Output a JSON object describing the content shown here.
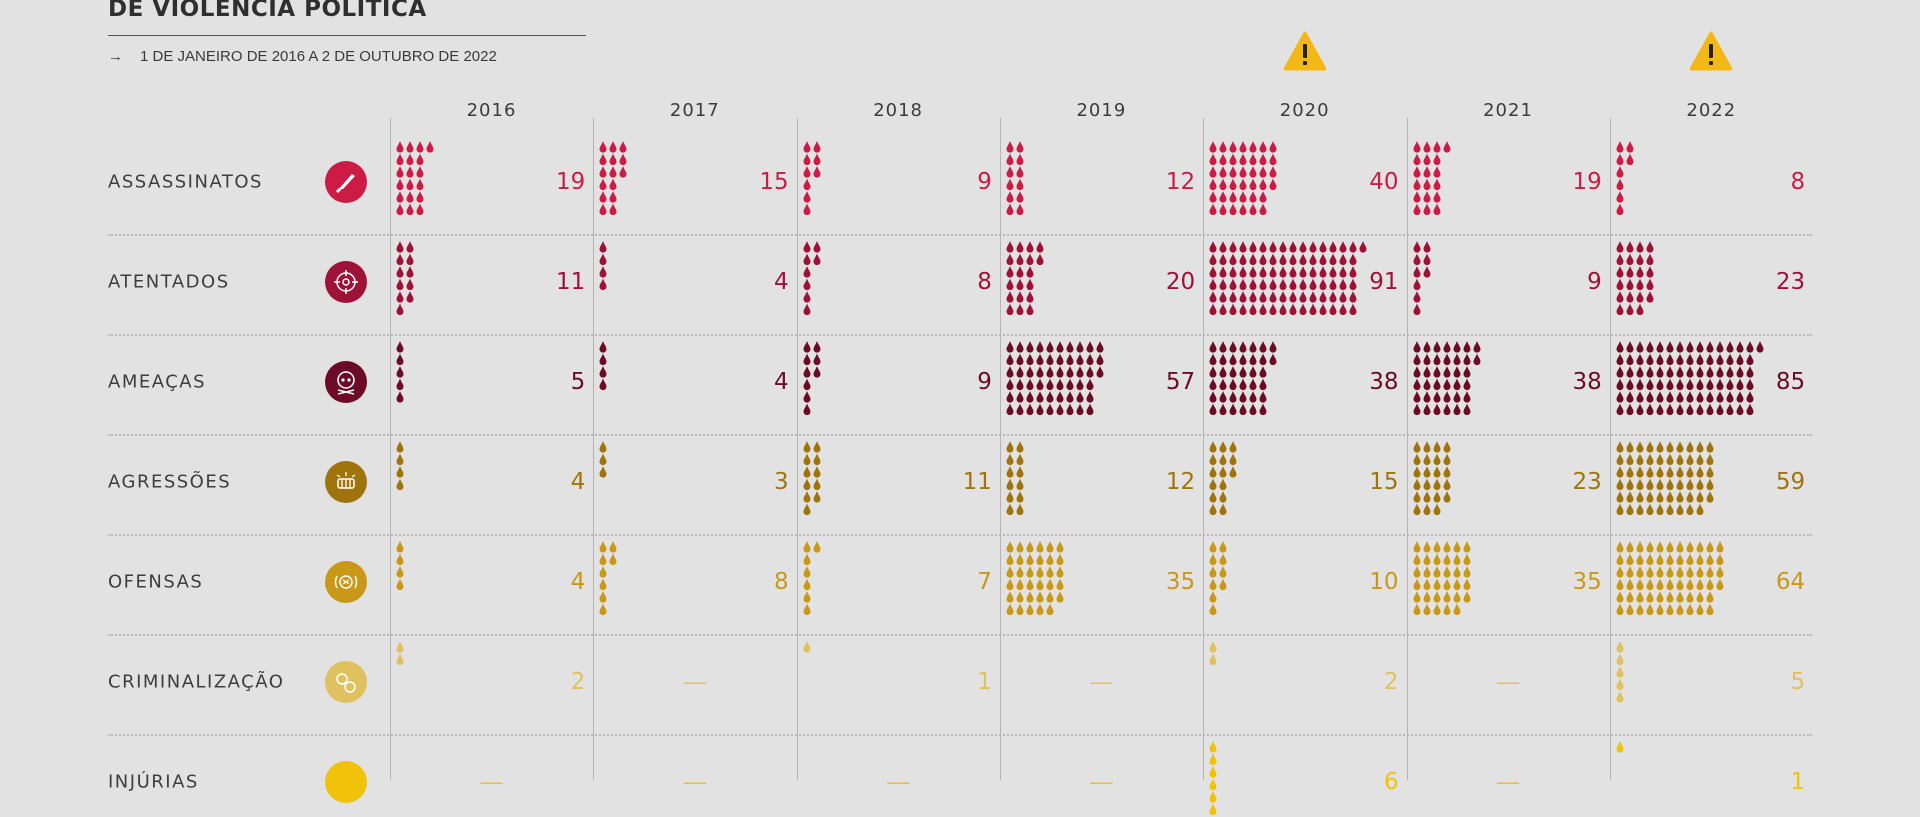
{
  "header": {
    "title": "DE VIOLÊNCIA POLÍTICA",
    "subtitle_arrow": "→",
    "subtitle": "1 DE JANEIRO DE 2016 A 2 DE OUTUBRO DE 2022",
    "warning_years": [
      "2020",
      "2022"
    ],
    "warning_color": "#f3b716"
  },
  "chart_data": {
    "type": "table",
    "title": "DE VIOLÊNCIA POLÍTICA",
    "subtitle": "1 DE JANEIRO DE 2016 A 2 DE OUTUBRO DE 2022",
    "categories": [
      "2016",
      "2017",
      "2018",
      "2019",
      "2020",
      "2021",
      "2022"
    ],
    "empty_marker": "—",
    "series": [
      {
        "name": "ASSASSINATOS",
        "icon": "knife-icon",
        "color": "#cc1b44",
        "values": [
          19,
          15,
          9,
          12,
          40,
          19,
          8
        ]
      },
      {
        "name": "ATENTADOS",
        "icon": "target-icon",
        "color": "#9e1238",
        "values": [
          11,
          4,
          8,
          20,
          91,
          9,
          23
        ]
      },
      {
        "name": "AMEAÇAS",
        "icon": "skull-icon",
        "color": "#6b0b27",
        "values": [
          5,
          4,
          9,
          57,
          38,
          38,
          85
        ]
      },
      {
        "name": "AGRESSÕES",
        "icon": "fist-icon",
        "color": "#a0740d",
        "values": [
          4,
          3,
          11,
          12,
          15,
          23,
          59
        ]
      },
      {
        "name": "OFENSAS",
        "icon": "shout-icon",
        "color": "#c99817",
        "values": [
          4,
          8,
          7,
          35,
          10,
          35,
          64
        ]
      },
      {
        "name": "CRIMINALIZAÇÃO",
        "icon": "gears-icon",
        "color": "#e0c15f",
        "values": [
          2,
          null,
          1,
          null,
          2,
          null,
          5
        ]
      },
      {
        "name": "INJÚRIAS",
        "icon": "circle-icon",
        "color": "#f0c20a",
        "values": [
          null,
          null,
          null,
          null,
          6,
          null,
          1
        ]
      }
    ]
  }
}
